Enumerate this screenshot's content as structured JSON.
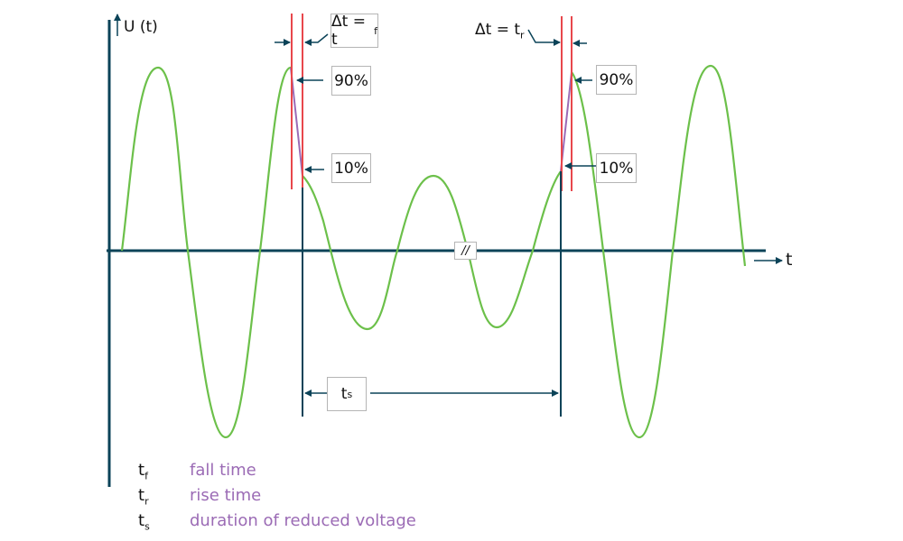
{
  "colors": {
    "wave": "#6cc04a",
    "marker": "#e8474c",
    "transition": "#9b6bb5",
    "axis": "#0b4358"
  },
  "axes": {
    "y_label": "U (t)",
    "x_label": "t",
    "break_mark": "//"
  },
  "annotations": {
    "fall": {
      "delta": "Δt = t",
      "sub": "f",
      "high": "90%",
      "low": "10%"
    },
    "rise": {
      "delta": "Δt = t",
      "sub": "r",
      "high": "90%",
      "low": "10%"
    },
    "duration": {
      "label": "t",
      "sub": "s"
    }
  },
  "legend": [
    {
      "symbol": "t",
      "sub": "f",
      "description": "fall time"
    },
    {
      "symbol": "t",
      "sub": "r",
      "description": "rise time"
    },
    {
      "symbol": "t",
      "sub": "s",
      "description": "duration of reduced voltage"
    }
  ]
}
